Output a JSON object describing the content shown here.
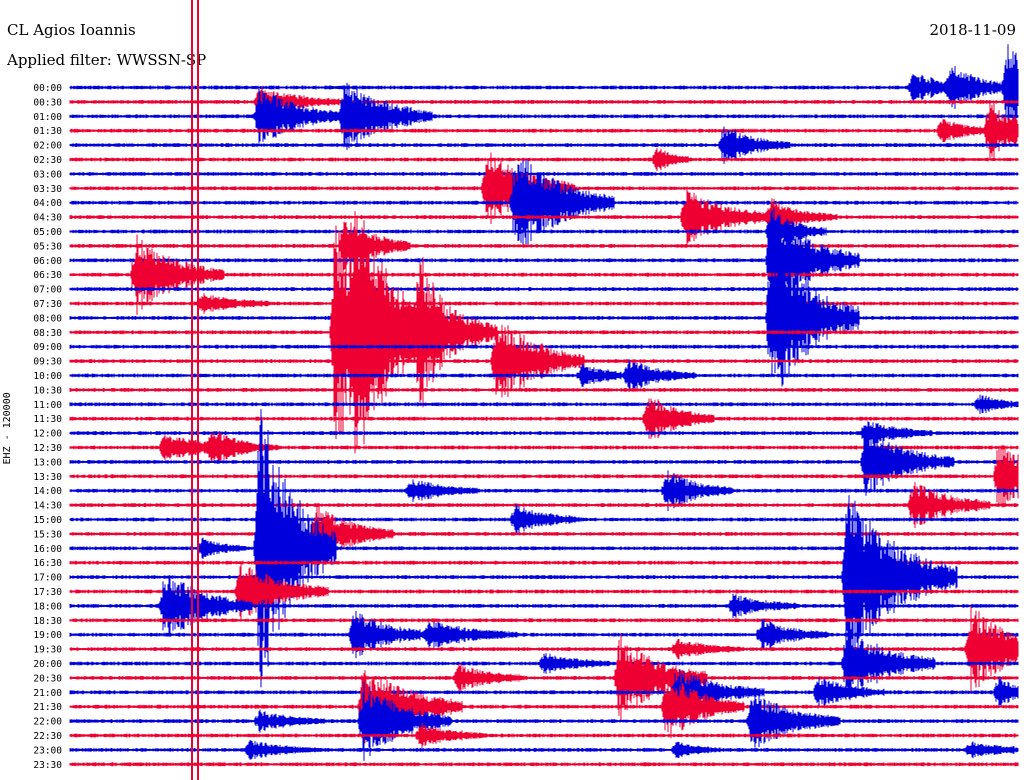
{
  "header": {
    "station": "CL Agios Ioannis",
    "filter": "Applied filter: WWSSN-SP",
    "date": "2018-11-09"
  },
  "chart_data": {
    "type": "helicorder",
    "ylabel": "EHZ - 120000",
    "rows": [
      "00:00",
      "00:30",
      "01:00",
      "01:30",
      "02:00",
      "02:30",
      "03:00",
      "03:30",
      "04:00",
      "04:30",
      "05:00",
      "05:30",
      "06:00",
      "06:30",
      "07:00",
      "07:30",
      "08:00",
      "08:30",
      "09:00",
      "09:30",
      "10:00",
      "10:30",
      "11:00",
      "11:30",
      "12:00",
      "12:30",
      "13:00",
      "13:30",
      "14:00",
      "14:30",
      "15:00",
      "15:30",
      "16:00",
      "16:30",
      "17:00",
      "17:30",
      "18:00",
      "18:30",
      "19:00",
      "19:30",
      "20:00",
      "20:30",
      "21:00",
      "21:30",
      "22:00",
      "22:30",
      "23:00",
      "23:30"
    ],
    "colors": {
      "even": "#0000dd",
      "odd": "#ee0033"
    },
    "events": [
      {
        "row": 1,
        "x": 0.2,
        "amp": 14,
        "len": 40
      },
      {
        "row": 2,
        "x": 0.2,
        "amp": 30,
        "len": 40
      },
      {
        "row": 2,
        "x": 0.29,
        "amp": 40,
        "len": 40
      },
      {
        "row": 0,
        "x": 0.89,
        "amp": 16,
        "len": 30
      },
      {
        "row": 0,
        "x": 0.93,
        "amp": 18,
        "len": 35
      },
      {
        "row": 0,
        "x": 0.99,
        "amp": 45,
        "len": 20
      },
      {
        "row": 3,
        "x": 0.97,
        "amp": 28,
        "len": 35
      },
      {
        "row": 3,
        "x": 0.92,
        "amp": 12,
        "len": 25
      },
      {
        "row": 4,
        "x": 0.69,
        "amp": 20,
        "len": 30
      },
      {
        "row": 5,
        "x": 0.62,
        "amp": 12,
        "len": 15
      },
      {
        "row": 7,
        "x": 0.44,
        "amp": 40,
        "len": 40
      },
      {
        "row": 8,
        "x": 0.47,
        "amp": 55,
        "len": 45
      },
      {
        "row": 9,
        "x": 0.65,
        "amp": 30,
        "len": 40
      },
      {
        "row": 9,
        "x": 0.74,
        "amp": 16,
        "len": 30
      },
      {
        "row": 10,
        "x": 0.74,
        "amp": 22,
        "len": 25
      },
      {
        "row": 11,
        "x": 0.29,
        "amp": 30,
        "len": 30
      },
      {
        "row": 12,
        "x": 0.74,
        "amp": 55,
        "len": 40
      },
      {
        "row": 13,
        "x": 0.07,
        "amp": 40,
        "len": 40
      },
      {
        "row": 15,
        "x": 0.14,
        "amp": 10,
        "len": 30
      },
      {
        "row": 16,
        "x": 0.74,
        "amp": 90,
        "len": 40
      },
      {
        "row": 17,
        "x": 0.28,
        "amp": 120,
        "len": 40
      },
      {
        "row": 17,
        "x": 0.3,
        "amp": 70,
        "len": 40
      },
      {
        "row": 17,
        "x": 0.37,
        "amp": 60,
        "len": 35
      },
      {
        "row": 19,
        "x": 0.45,
        "amp": 50,
        "len": 40
      },
      {
        "row": 20,
        "x": 0.59,
        "amp": 15,
        "len": 30
      },
      {
        "row": 20,
        "x": 0.54,
        "amp": 10,
        "len": 30
      },
      {
        "row": 22,
        "x": 0.96,
        "amp": 10,
        "len": 20
      },
      {
        "row": 23,
        "x": 0.61,
        "amp": 25,
        "len": 30
      },
      {
        "row": 24,
        "x": 0.84,
        "amp": 14,
        "len": 30
      },
      {
        "row": 25,
        "x": 0.1,
        "amp": 14,
        "len": 40
      },
      {
        "row": 25,
        "x": 0.15,
        "amp": 14,
        "len": 30
      },
      {
        "row": 26,
        "x": 0.84,
        "amp": 35,
        "len": 40
      },
      {
        "row": 27,
        "x": 0.98,
        "amp": 40,
        "len": 30
      },
      {
        "row": 28,
        "x": 0.63,
        "amp": 20,
        "len": 30
      },
      {
        "row": 28,
        "x": 0.36,
        "amp": 12,
        "len": 30
      },
      {
        "row": 29,
        "x": 0.89,
        "amp": 25,
        "len": 35
      },
      {
        "row": 30,
        "x": 0.47,
        "amp": 14,
        "len": 30
      },
      {
        "row": 31,
        "x": 0.26,
        "amp": 30,
        "len": 35
      },
      {
        "row": 32,
        "x": 0.2,
        "amp": 150,
        "len": 35
      },
      {
        "row": 32,
        "x": 0.14,
        "amp": 10,
        "len": 20
      },
      {
        "row": 34,
        "x": 0.82,
        "amp": 90,
        "len": 50
      },
      {
        "row": 35,
        "x": 0.18,
        "amp": 30,
        "len": 40
      },
      {
        "row": 36,
        "x": 0.1,
        "amp": 35,
        "len": 40
      },
      {
        "row": 36,
        "x": 0.7,
        "amp": 12,
        "len": 30
      },
      {
        "row": 38,
        "x": 0.3,
        "amp": 25,
        "len": 35
      },
      {
        "row": 38,
        "x": 0.38,
        "amp": 14,
        "len": 40
      },
      {
        "row": 38,
        "x": 0.73,
        "amp": 16,
        "len": 30
      },
      {
        "row": 39,
        "x": 0.95,
        "amp": 45,
        "len": 40
      },
      {
        "row": 39,
        "x": 0.64,
        "amp": 10,
        "len": 30
      },
      {
        "row": 40,
        "x": 0.82,
        "amp": 40,
        "len": 40
      },
      {
        "row": 40,
        "x": 0.5,
        "amp": 10,
        "len": 30
      },
      {
        "row": 41,
        "x": 0.58,
        "amp": 45,
        "len": 40
      },
      {
        "row": 41,
        "x": 0.41,
        "amp": 14,
        "len": 30
      },
      {
        "row": 42,
        "x": 0.64,
        "amp": 25,
        "len": 40
      },
      {
        "row": 42,
        "x": 0.79,
        "amp": 16,
        "len": 30
      },
      {
        "row": 42,
        "x": 0.98,
        "amp": 16,
        "len": 20
      },
      {
        "row": 43,
        "x": 0.31,
        "amp": 45,
        "len": 45
      },
      {
        "row": 43,
        "x": 0.63,
        "amp": 35,
        "len": 35
      },
      {
        "row": 44,
        "x": 0.31,
        "amp": 40,
        "len": 40
      },
      {
        "row": 44,
        "x": 0.72,
        "amp": 30,
        "len": 40
      },
      {
        "row": 44,
        "x": 0.2,
        "amp": 10,
        "len": 30
      },
      {
        "row": 45,
        "x": 0.37,
        "amp": 12,
        "len": 30
      },
      {
        "row": 46,
        "x": 0.19,
        "amp": 10,
        "len": 30
      },
      {
        "row": 46,
        "x": 0.64,
        "amp": 8,
        "len": 20
      },
      {
        "row": 46,
        "x": 0.95,
        "amp": 8,
        "len": 30
      }
    ]
  }
}
